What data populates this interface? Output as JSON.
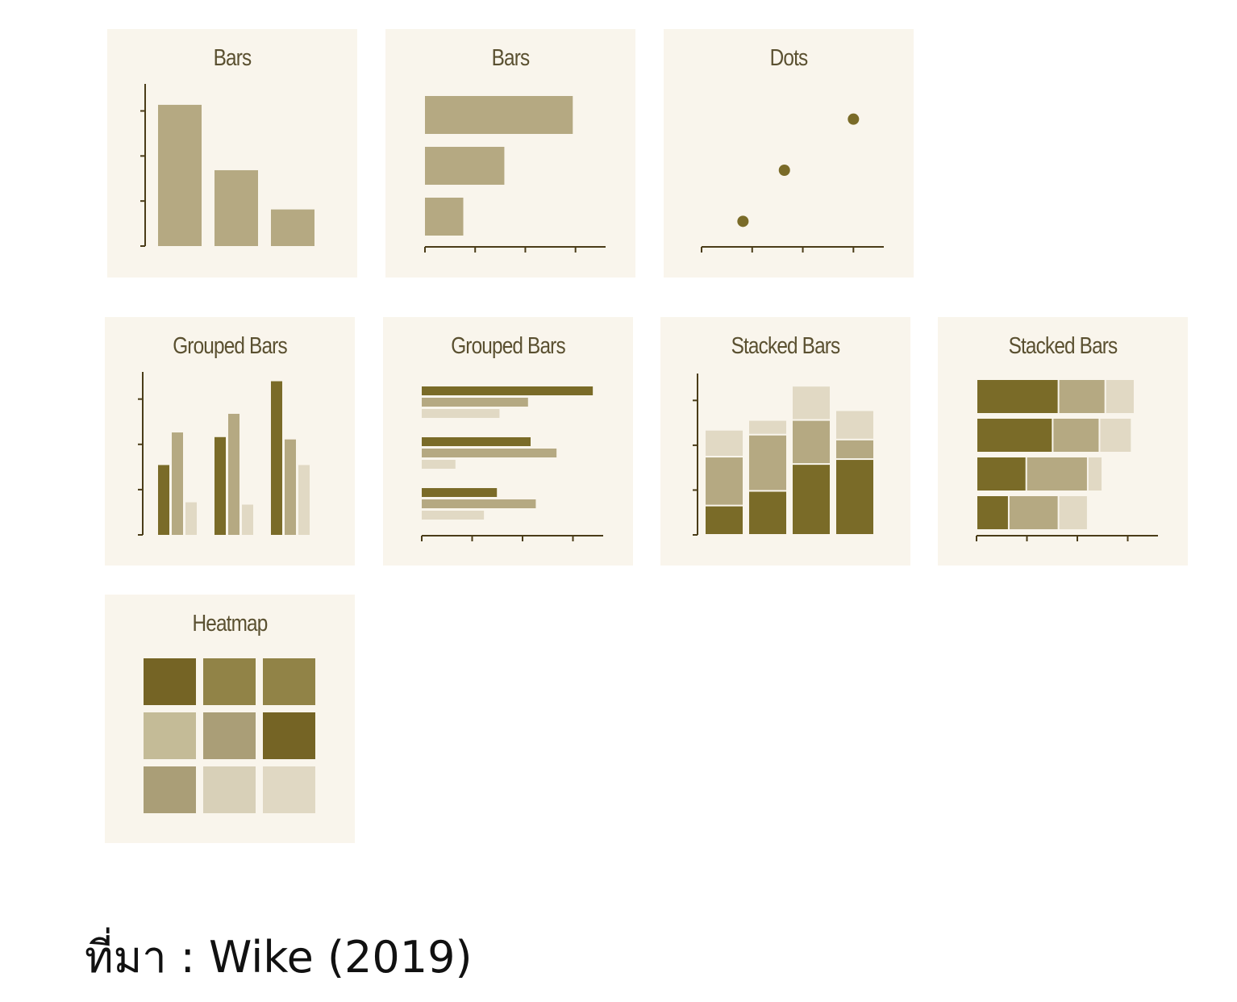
{
  "caption": "ที่มา : Wike (2019)",
  "colors": {
    "axis": "#4a3c18",
    "dark": "#7a6b28",
    "mid": "#b5a982",
    "light": "#e1d9c4",
    "heat": [
      "#756425",
      "#918347",
      "#aa9e77",
      "#c4bb97",
      "#d8d0b8",
      "#e0d8c3"
    ]
  },
  "chart_data": [
    {
      "type": "bar",
      "orientation": "vertical",
      "title": "Bars",
      "values": [
        2.7,
        1.45,
        0.7
      ],
      "ylim": [
        0,
        3.1
      ]
    },
    {
      "type": "bar",
      "orientation": "horizontal",
      "title": "Bars",
      "values": [
        2.7,
        1.45,
        0.7
      ],
      "xlim": [
        0,
        3.3
      ]
    },
    {
      "type": "scatter",
      "title": "Dots",
      "x": [
        0.75,
        1.5,
        2.75
      ],
      "y": [
        0.5,
        1.5,
        2.5
      ],
      "xlim": [
        0,
        3.3
      ],
      "ylim": [
        0,
        3
      ]
    },
    {
      "type": "bar",
      "orientation": "vertical",
      "grouped": true,
      "title": "Grouped Bars",
      "series": [
        {
          "values": [
            1.5,
            2.1,
            3.3
          ]
        },
        {
          "values": [
            2.2,
            2.6,
            2.05
          ]
        },
        {
          "values": [
            0.7,
            0.65,
            1.5
          ]
        }
      ],
      "ylim": [
        0,
        3.5
      ]
    },
    {
      "type": "bar",
      "orientation": "horizontal",
      "grouped": true,
      "title": "Grouped Bars",
      "series": [
        {
          "values": [
            3.3,
            2.1,
            1.45
          ]
        },
        {
          "values": [
            2.05,
            2.6,
            2.2
          ]
        },
        {
          "values": [
            1.5,
            0.65,
            1.2
          ]
        }
      ],
      "xlim": [
        0,
        3.5
      ]
    },
    {
      "type": "bar",
      "orientation": "vertical",
      "stacked": true,
      "title": "Stacked Bars",
      "series": [
        {
          "values": [
            0.6,
            0.9,
            1.45,
            1.55
          ]
        },
        {
          "values": [
            1.0,
            1.15,
            0.9,
            0.4
          ]
        },
        {
          "values": [
            0.55,
            0.3,
            0.7,
            0.6
          ]
        }
      ],
      "ylim": [
        0,
        3.3
      ]
    },
    {
      "type": "bar",
      "orientation": "horizontal",
      "stacked": true,
      "title": "Stacked Bars",
      "series": [
        {
          "values": [
            1.4,
            1.3,
            0.85,
            0.55
          ]
        },
        {
          "values": [
            0.8,
            0.8,
            1.05,
            0.85
          ]
        },
        {
          "values": [
            0.5,
            0.55,
            0.25,
            0.5
          ]
        }
      ],
      "xlim": [
        0,
        3.1
      ]
    },
    {
      "type": "heatmap",
      "title": "Heatmap",
      "rows": 3,
      "cols": 3,
      "values": [
        [
          5,
          4,
          4
        ],
        [
          2,
          3,
          5
        ],
        [
          3,
          1,
          0
        ]
      ]
    }
  ]
}
